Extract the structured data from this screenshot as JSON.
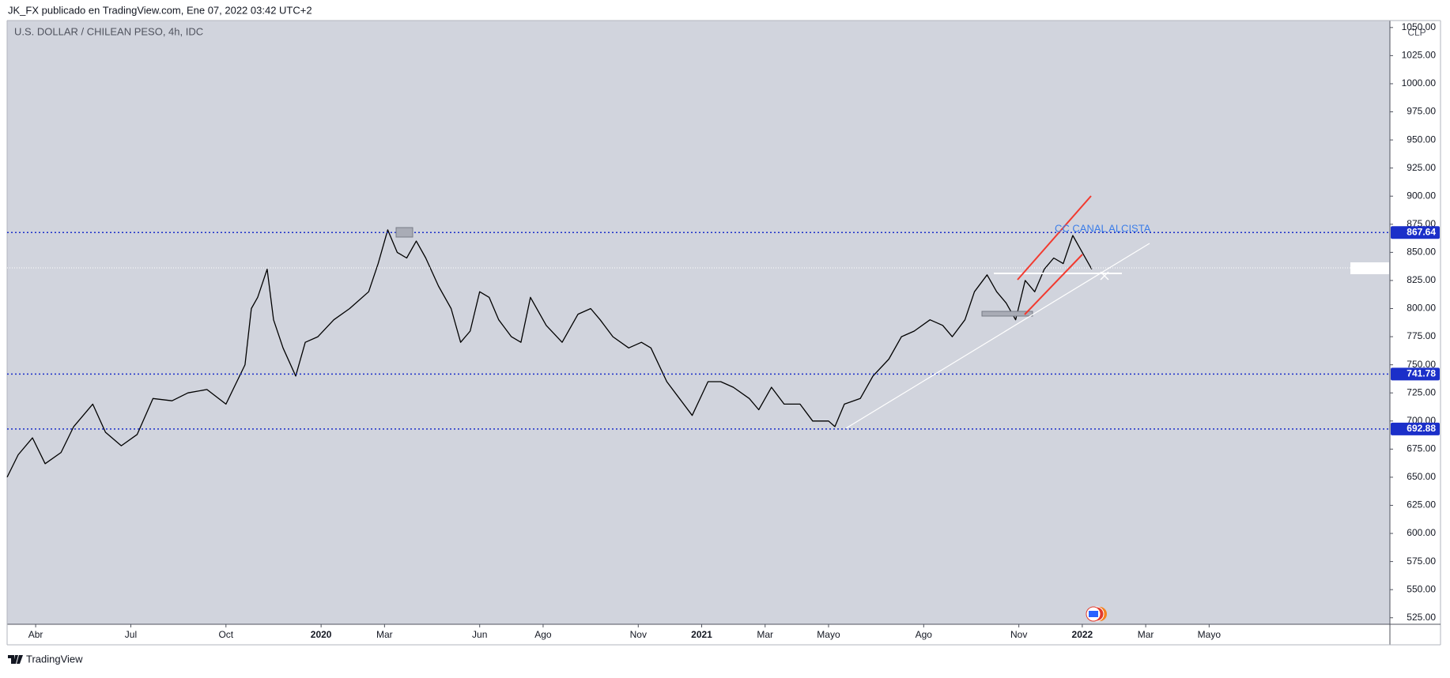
{
  "header": {
    "publisher": "JK_FX publicado en TradingView.com, Ene 07, 2022 03:42 UTC+2"
  },
  "footer": {
    "brand": "TradingView"
  },
  "chart_data": {
    "type": "line",
    "title": "U.S. DOLLAR / CHILEAN PESO, 4h, IDC",
    "currency": "CLP",
    "color": "#000000",
    "x": [
      -0.9,
      -0.55,
      -0.1,
      0.3,
      0.8,
      1.2,
      1.8,
      2.2,
      2.7,
      3.2,
      3.7,
      4.3,
      4.8,
      5.4,
      6.0,
      6.6,
      6.8,
      7.0,
      7.3,
      7.5,
      7.8,
      8.2,
      8.5,
      8.9,
      9.4,
      9.9,
      10.5,
      10.8,
      11.1,
      11.4,
      11.7,
      12.0,
      12.3,
      12.7,
      13.1,
      13.4,
      13.7,
      14.0,
      14.3,
      14.6,
      15.0,
      15.3,
      15.6,
      16.1,
      16.6,
      17.1,
      17.5,
      17.8,
      18.2,
      18.7,
      19.1,
      19.4,
      19.9,
      20.3,
      20.7,
      21.2,
      21.6,
      22.0,
      22.5,
      22.8,
      23.2,
      23.6,
      24.1,
      24.5,
      25.0,
      25.2,
      25.5,
      26.0,
      26.4,
      26.9,
      27.3,
      27.7,
      28.2,
      28.6,
      28.9,
      29.3,
      29.6,
      30.0,
      30.3,
      30.6,
      30.9,
      31.2,
      31.5,
      31.8,
      32.1,
      32.4,
      32.7,
      33.0,
      33.3
    ],
    "values": [
      650,
      670,
      685,
      662,
      672,
      695,
      715,
      690,
      678,
      688,
      720,
      718,
      725,
      728,
      715,
      750,
      800,
      810,
      835,
      790,
      765,
      740,
      770,
      775,
      790,
      800,
      815,
      840,
      870,
      850,
      845,
      860,
      845,
      820,
      800,
      770,
      780,
      815,
      810,
      790,
      775,
      770,
      810,
      785,
      770,
      795,
      800,
      790,
      775,
      765,
      770,
      765,
      735,
      720,
      705,
      735,
      735,
      730,
      720,
      710,
      730,
      715,
      715,
      700,
      700,
      695,
      715,
      720,
      740,
      755,
      775,
      780,
      790,
      785,
      775,
      790,
      815,
      830,
      815,
      805,
      790,
      825,
      815,
      835,
      845,
      840,
      865,
      850,
      835
    ],
    "xlim": [
      -0.9,
      42.7
    ],
    "ylim": [
      519.2,
      1056.2
    ],
    "xticks": [
      {
        "value": 0,
        "label": "Abr"
      },
      {
        "value": 3,
        "label": "Jul"
      },
      {
        "value": 6,
        "label": "Oct"
      },
      {
        "value": 9,
        "label": "2020"
      },
      {
        "value": 11,
        "label": "Mar"
      },
      {
        "value": 14,
        "label": "Jun"
      },
      {
        "value": 16,
        "label": "Ago"
      },
      {
        "value": 19,
        "label": "Nov"
      },
      {
        "value": 21,
        "label": "2021"
      },
      {
        "value": 23,
        "label": "Mar"
      },
      {
        "value": 25,
        "label": "Mayo"
      },
      {
        "value": 28,
        "label": "Ago"
      },
      {
        "value": 31,
        "label": "Nov"
      },
      {
        "value": 33,
        "label": "2022"
      },
      {
        "value": 35,
        "label": "Mar"
      },
      {
        "value": 37,
        "label": "Mayo"
      }
    ],
    "yticks": [
      {
        "value": 525,
        "label": "525.00"
      },
      {
        "value": 550,
        "label": "550.00"
      },
      {
        "value": 575,
        "label": "575.00"
      },
      {
        "value": 600,
        "label": "600.00"
      },
      {
        "value": 625,
        "label": "625.00"
      },
      {
        "value": 650,
        "label": "650.00"
      },
      {
        "value": 675,
        "label": "675.00"
      },
      {
        "value": 700,
        "label": "700.00"
      },
      {
        "value": 725,
        "label": "725.00"
      },
      {
        "value": 750,
        "label": "750.00"
      },
      {
        "value": 775,
        "label": "775.00"
      },
      {
        "value": 800,
        "label": "800.00"
      },
      {
        "value": 825,
        "label": "825.00"
      },
      {
        "value": 850,
        "label": "850.00"
      },
      {
        "value": 875,
        "label": "875.00"
      },
      {
        "value": 900,
        "label": "900.00"
      },
      {
        "value": 925,
        "label": "925.00"
      },
      {
        "value": 950,
        "label": "950.00"
      },
      {
        "value": 975,
        "label": "975.00"
      },
      {
        "value": 1000,
        "label": "1000.00"
      },
      {
        "value": 1025,
        "label": "1025.00"
      },
      {
        "value": 1050,
        "label": "1050.00"
      }
    ],
    "levels": [
      867.64,
      741.78,
      692.88
    ],
    "level_color": "#1b2fc9",
    "grid": false,
    "annotation": "CC CANAL ALCISTA"
  }
}
